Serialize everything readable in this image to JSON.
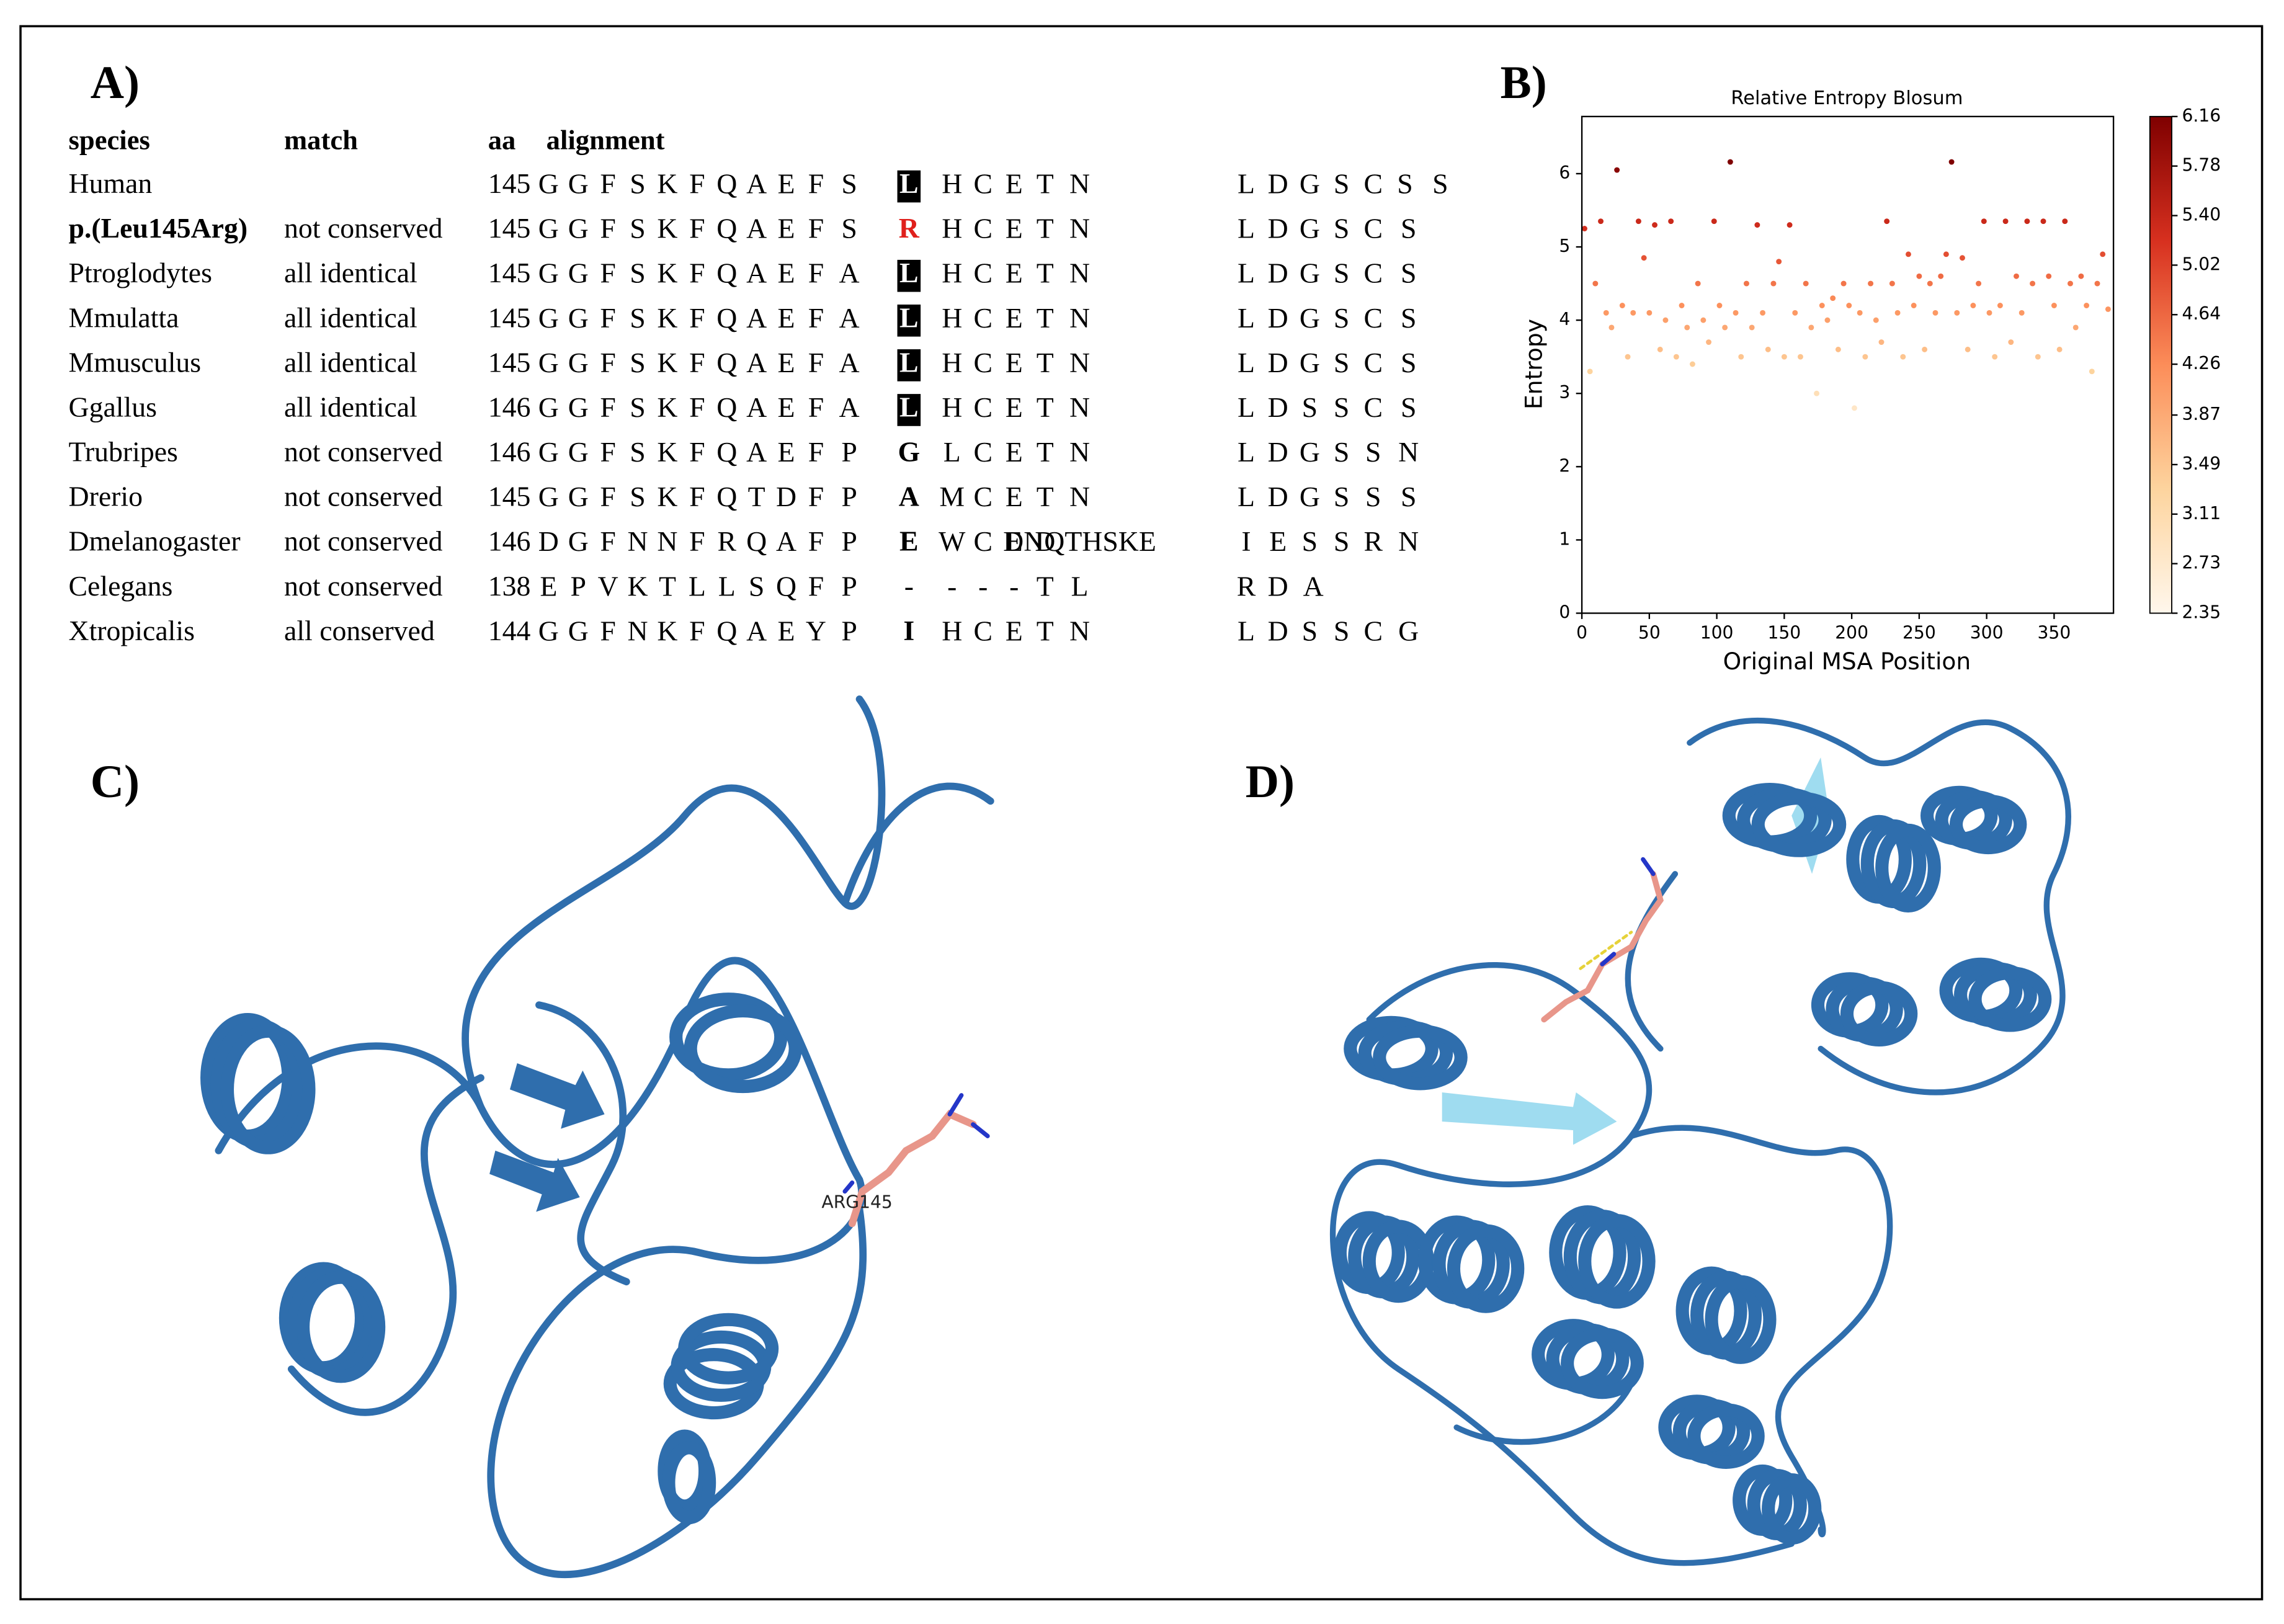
{
  "panel_a": {
    "label": "A)",
    "header": {
      "species": "species",
      "match": "match",
      "aa": "aa",
      "alignment": "alignment"
    },
    "rows": [
      {
        "species": "Human",
        "aa": 145,
        "pre": "G G F S K F Q A E F S",
        "site": "L",
        "site_style": "highlight",
        "post": "H C E T N",
        "end": "L D G S C S S"
      },
      {
        "species": "p.(Leu145Arg)",
        "species_bold": true,
        "match": "not conserved",
        "aa": 145,
        "pre": "G G F S K F Q A E F S",
        "site": "R",
        "site_style": "red",
        "post": "H C E T N",
        "end": "L D G S C S"
      },
      {
        "species": "Ptroglodytes",
        "match": "all identical",
        "aa": 145,
        "pre": "G G F S K F Q A E F A",
        "site": "L",
        "site_style": "highlight",
        "post": "H C E T N",
        "end": "L D G S C S"
      },
      {
        "species": "Mmulatta",
        "match": "all identical",
        "aa": 145,
        "pre": "G G F S K F Q A E F A",
        "site": "L",
        "site_style": "highlight",
        "post": "H C E T N",
        "end": "L D G S C S"
      },
      {
        "species": "Mmusculus",
        "match": "all identical",
        "aa": 145,
        "pre": "G G F S K F Q A E F A",
        "site": "L",
        "site_style": "highlight",
        "post": "H C E T N",
        "end": "L D G S C S"
      },
      {
        "species": "Ggallus",
        "match": "all identical",
        "aa": 146,
        "pre": "G G F S K F Q A E F A",
        "site": "L",
        "site_style": "highlight",
        "post": "H C E T N",
        "end": "L D S S C S"
      },
      {
        "species": "Trubripes",
        "match": "not conserved",
        "aa": 146,
        "pre": "G G F S K F Q A E F P",
        "site": "G",
        "site_style": "bold",
        "post": "L C E T N",
        "end": "L D G S S N"
      },
      {
        "species": "Drerio",
        "match": "not conserved",
        "aa": 145,
        "pre": "G G F S K F Q T D F P",
        "site": "A",
        "site_style": "bold",
        "post": "M C E T N",
        "end": "L D G S S S"
      },
      {
        "species": "Dmelanogaster",
        "match": "not conserved",
        "aa": 146,
        "pre": "D G F N N F R Q A F P",
        "site": "E",
        "site_style": "bold",
        "post": "W C E D DNQTHSKE",
        "end": "I E S S R N"
      },
      {
        "species": "Celegans",
        "match": "not conserved",
        "aa": 138,
        "pre": "E P V K T L L S Q F P",
        "site": "-",
        "site_style": "plain",
        "post": "- - - T L",
        "end": "R D A"
      },
      {
        "species": "Xtropicalis",
        "match": "all conserved",
        "aa": 144,
        "pre": "G G F N K F Q A E Y P",
        "site": "I",
        "site_style": "bold",
        "post": "H C E T N",
        "end": "L D S S C G"
      }
    ]
  },
  "chart_data": {
    "type": "scatter",
    "label": "B)",
    "title": "Relative Entropy Blosum",
    "xlabel": "Original MSA Position",
    "ylabel": "Entropy",
    "xlim": [
      0,
      394
    ],
    "ylim": [
      0,
      6.78
    ],
    "xticks": [
      0,
      50,
      100,
      150,
      200,
      250,
      300,
      350
    ],
    "yticks": [
      0,
      1,
      2,
      3,
      4,
      5,
      6
    ],
    "colormap": [
      "#fff7ec",
      "#fdd49e",
      "#fc8d59",
      "#d7301f",
      "#7f0000"
    ],
    "clim": [
      2.35,
      6.16
    ],
    "cticks": [
      2.35,
      2.73,
      3.11,
      3.49,
      3.87,
      4.26,
      4.64,
      5.02,
      {
        "value": 5.4,
        "label": "5.40"
      },
      5.78,
      6.16
    ],
    "x": [
      2,
      6,
      10,
      14,
      18,
      22,
      26,
      30,
      34,
      38,
      42,
      46,
      50,
      54,
      58,
      62,
      66,
      70,
      74,
      78,
      82,
      86,
      90,
      94,
      98,
      102,
      106,
      110,
      114,
      118,
      122,
      126,
      130,
      134,
      138,
      142,
      146,
      150,
      154,
      158,
      162,
      166,
      170,
      174,
      178,
      182,
      186,
      190,
      194,
      198,
      202,
      206,
      210,
      214,
      218,
      222,
      226,
      230,
      234,
      238,
      242,
      246,
      250,
      254,
      258,
      262,
      266,
      270,
      274,
      278,
      282,
      286,
      290,
      294,
      298,
      302,
      306,
      310,
      314,
      318,
      322,
      326,
      330,
      334,
      338,
      342,
      346,
      350,
      354,
      358,
      362,
      366,
      370,
      374,
      378,
      382,
      386,
      390
    ],
    "values": [
      5.25,
      3.3,
      4.5,
      5.35,
      4.1,
      3.9,
      6.05,
      4.2,
      3.5,
      4.1,
      5.35,
      4.85,
      4.1,
      5.3,
      3.6,
      4.0,
      5.35,
      3.5,
      4.2,
      3.9,
      3.4,
      4.5,
      4.0,
      3.7,
      5.35,
      4.2,
      3.9,
      6.16,
      4.1,
      3.5,
      4.5,
      3.9,
      5.3,
      4.1,
      3.6,
      4.5,
      4.8,
      3.5,
      5.3,
      4.1,
      3.5,
      4.5,
      3.9,
      3.0,
      4.2,
      4.0,
      4.3,
      3.6,
      4.5,
      4.2,
      2.8,
      4.1,
      3.5,
      4.5,
      4.0,
      3.7,
      5.35,
      4.5,
      4.1,
      3.5,
      4.9,
      4.2,
      4.6,
      3.6,
      4.5,
      4.1,
      4.6,
      4.9,
      6.16,
      4.1,
      4.85,
      3.6,
      4.2,
      4.5,
      5.35,
      4.1,
      3.5,
      4.2,
      5.35,
      3.7,
      4.6,
      4.1,
      5.35,
      4.5,
      3.5,
      5.35,
      4.6,
      4.2,
      3.6,
      5.35,
      4.5,
      3.9,
      4.6,
      4.2,
      3.3,
      4.5,
      4.9,
      4.15
    ]
  },
  "panel_c": {
    "label": "C)",
    "residue_label": "ARG145"
  },
  "panel_d": {
    "label": "D)"
  }
}
